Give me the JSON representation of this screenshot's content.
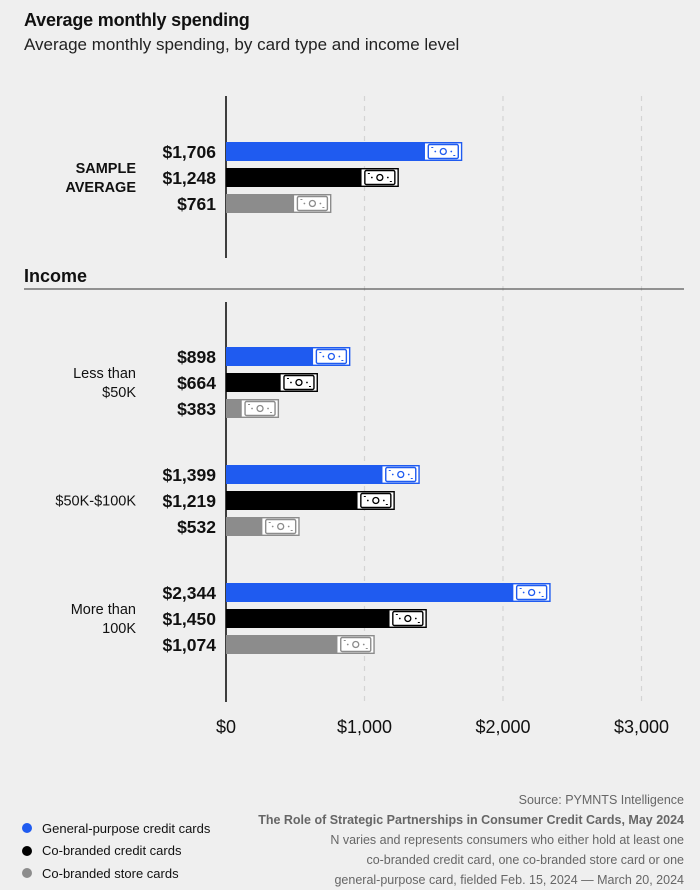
{
  "title": "Average monthly spending",
  "subtitle": "Average monthly spending, by card type and income level",
  "section_label": "Income",
  "colors": {
    "general": "#1f5bf0",
    "cobranded_credit": "#000000",
    "cobranded_store": "#8c8c8c",
    "axis": "#111111",
    "grid": "#d4d4d4"
  },
  "legend": [
    {
      "label": "General-purpose credit cards",
      "color": "#1f5bf0"
    },
    {
      "label": "Co-branded credit cards",
      "color": "#000000"
    },
    {
      "label": "Co-branded store cards",
      "color": "#8c8c8c"
    }
  ],
  "footer": {
    "source": "Source: PYMNTS Intelligence",
    "report": "The Role of Strategic Partnerships in Consumer Credit Cards, May 2024",
    "note_lines": [
      "N varies and represents consumers who either hold at least one",
      "co-branded credit card, one co-branded store card or one",
      "general-purpose card, fielded Feb. 15, 2024 — March 20, 2024"
    ]
  },
  "chart_data": {
    "type": "bar",
    "orientation": "horizontal",
    "xlim": [
      0,
      3000
    ],
    "x_ticks": [
      0,
      1000,
      2000,
      3000
    ],
    "x_tick_labels": [
      "$0",
      "$1,000",
      "$2,000",
      "$3,000"
    ],
    "grid": "vertical dashed",
    "legend_position": "bottom-left",
    "series_names": [
      "General-purpose credit cards",
      "Co-branded credit cards",
      "Co-branded store cards"
    ],
    "groups": [
      {
        "label_lines": [
          "SAMPLE",
          "AVERAGE"
        ],
        "bold": true,
        "values": [
          1706,
          1248,
          761
        ],
        "value_labels": [
          "$1,706",
          "$1,248",
          "$761"
        ]
      },
      {
        "label_lines": [
          "Less than",
          "$50K"
        ],
        "bold": false,
        "values": [
          898,
          664,
          383
        ],
        "value_labels": [
          "$898",
          "$664",
          "$383"
        ]
      },
      {
        "label_lines": [
          "$50K-$100K"
        ],
        "bold": false,
        "values": [
          1399,
          1219,
          532
        ],
        "value_labels": [
          "$1,399",
          "$1,219",
          "$532"
        ]
      },
      {
        "label_lines": [
          "More than",
          "100K"
        ],
        "bold": false,
        "values": [
          2344,
          1450,
          1074
        ],
        "value_labels": [
          "$2,344",
          "$1,450",
          "$1,074"
        ]
      }
    ]
  }
}
